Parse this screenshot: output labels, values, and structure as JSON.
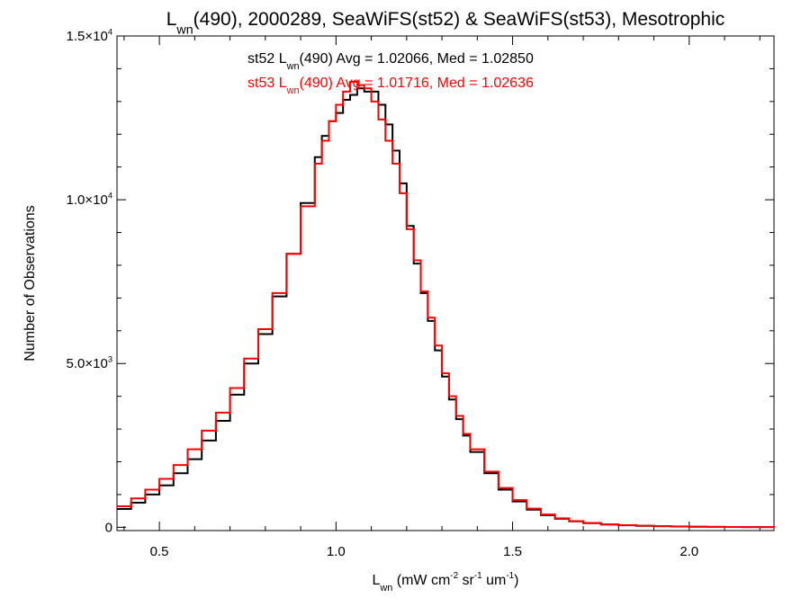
{
  "chart_data": {
    "type": "line",
    "title": {
      "parts": [
        {
          "text": "L",
          "style": "normal"
        },
        {
          "text": "wn",
          "style": "sub"
        },
        {
          "text": "(490), 2000289, SeaWiFS(st52) & SeaWiFS(st53), Mesotrophic",
          "style": "normal"
        }
      ]
    },
    "xlabel": {
      "parts": [
        {
          "text": "L",
          "style": "normal"
        },
        {
          "text": "wn",
          "style": "sub"
        },
        {
          "text": " (mW cm",
          "style": "normal"
        },
        {
          "text": "-2",
          "style": "sup"
        },
        {
          "text": " sr",
          "style": "normal"
        },
        {
          "text": "-1",
          "style": "sup"
        },
        {
          "text": " um",
          "style": "normal"
        },
        {
          "text": "-1",
          "style": "sup"
        },
        {
          "text": ")",
          "style": "normal"
        }
      ]
    },
    "ylabel": "Number of Observations",
    "xlim": [
      0.38,
      2.24
    ],
    "ylim": [
      -100,
      15000
    ],
    "xticks": [
      {
        "value": 0.5,
        "label": "0.5"
      },
      {
        "value": 1.0,
        "label": "1.0"
      },
      {
        "value": 1.5,
        "label": "1.5"
      },
      {
        "value": 2.0,
        "label": "2.0"
      }
    ],
    "yticks": [
      {
        "value": 0,
        "mantissa": "0",
        "exponent": ""
      },
      {
        "value": 5000,
        "mantissa": "5.0×10",
        "exponent": "3"
      },
      {
        "value": 10000,
        "mantissa": "1.0×10",
        "exponent": "4"
      },
      {
        "value": 15000,
        "mantissa": "1.5×10",
        "exponent": "4"
      }
    ],
    "step_style": "histogram-step",
    "series": [
      {
        "legend": [
          {
            "text": "st52 L",
            "style": "normal"
          },
          {
            "text": "wn",
            "style": "sub"
          },
          {
            "text": "(490) Avg = 1.02066, Med = 1.02850",
            "style": "normal"
          }
        ],
        "color": "#000000",
        "x": [
          0.38,
          0.42,
          0.46,
          0.5,
          0.54,
          0.58,
          0.62,
          0.66,
          0.7,
          0.74,
          0.78,
          0.82,
          0.86,
          0.9,
          0.94,
          0.96,
          0.98,
          1.0,
          1.02,
          1.04,
          1.06,
          1.08,
          1.1,
          1.12,
          1.14,
          1.16,
          1.18,
          1.2,
          1.22,
          1.24,
          1.26,
          1.28,
          1.3,
          1.32,
          1.34,
          1.36,
          1.38,
          1.42,
          1.46,
          1.5,
          1.54,
          1.58,
          1.62,
          1.66,
          1.7,
          1.75,
          1.8,
          1.85,
          1.9,
          1.95,
          2.0,
          2.05,
          2.1,
          2.15,
          2.2,
          2.24
        ],
        "y": [
          560,
          750,
          1000,
          1280,
          1650,
          2080,
          2650,
          3250,
          4050,
          5000,
          5900,
          7050,
          8350,
          9900,
          11300,
          11950,
          12400,
          12650,
          13050,
          13200,
          13400,
          13300,
          13300,
          12900,
          12300,
          11500,
          10500,
          9200,
          8050,
          7150,
          6300,
          5400,
          4600,
          3900,
          3300,
          2800,
          2300,
          1650,
          1150,
          790,
          540,
          370,
          260,
          180,
          125,
          85,
          60,
          45,
          33,
          25,
          18,
          13,
          9,
          7,
          5,
          4
        ]
      },
      {
        "legend": [
          {
            "text": "st53 L",
            "style": "normal"
          },
          {
            "text": "wn",
            "style": "sub"
          },
          {
            "text": "(490) Avg = 1.01716, Med = 1.02636",
            "style": "normal"
          }
        ],
        "color": "#ff0000",
        "x": [
          0.38,
          0.42,
          0.46,
          0.5,
          0.54,
          0.58,
          0.62,
          0.66,
          0.7,
          0.74,
          0.78,
          0.82,
          0.86,
          0.9,
          0.94,
          0.96,
          0.98,
          1.0,
          1.02,
          1.04,
          1.06,
          1.08,
          1.1,
          1.12,
          1.14,
          1.16,
          1.18,
          1.2,
          1.22,
          1.24,
          1.26,
          1.28,
          1.3,
          1.32,
          1.34,
          1.36,
          1.38,
          1.42,
          1.46,
          1.5,
          1.54,
          1.58,
          1.62,
          1.66,
          1.7,
          1.75,
          1.8,
          1.85,
          1.9,
          1.95,
          2.0,
          2.05,
          2.1,
          2.15,
          2.2,
          2.24
        ],
        "y": [
          640,
          880,
          1150,
          1480,
          1900,
          2380,
          2950,
          3500,
          4250,
          5150,
          6050,
          7150,
          8350,
          9800,
          11100,
          11800,
          12400,
          12900,
          13300,
          13600,
          13500,
          13400,
          13000,
          12450,
          11800,
          11100,
          10200,
          9100,
          8150,
          7200,
          6400,
          5550,
          4700,
          4000,
          3400,
          2850,
          2380,
          1700,
          1200,
          830,
          570,
          390,
          275,
          190,
          130,
          90,
          65,
          48,
          35,
          27,
          20,
          14,
          10,
          7,
          5,
          4
        ]
      }
    ]
  }
}
